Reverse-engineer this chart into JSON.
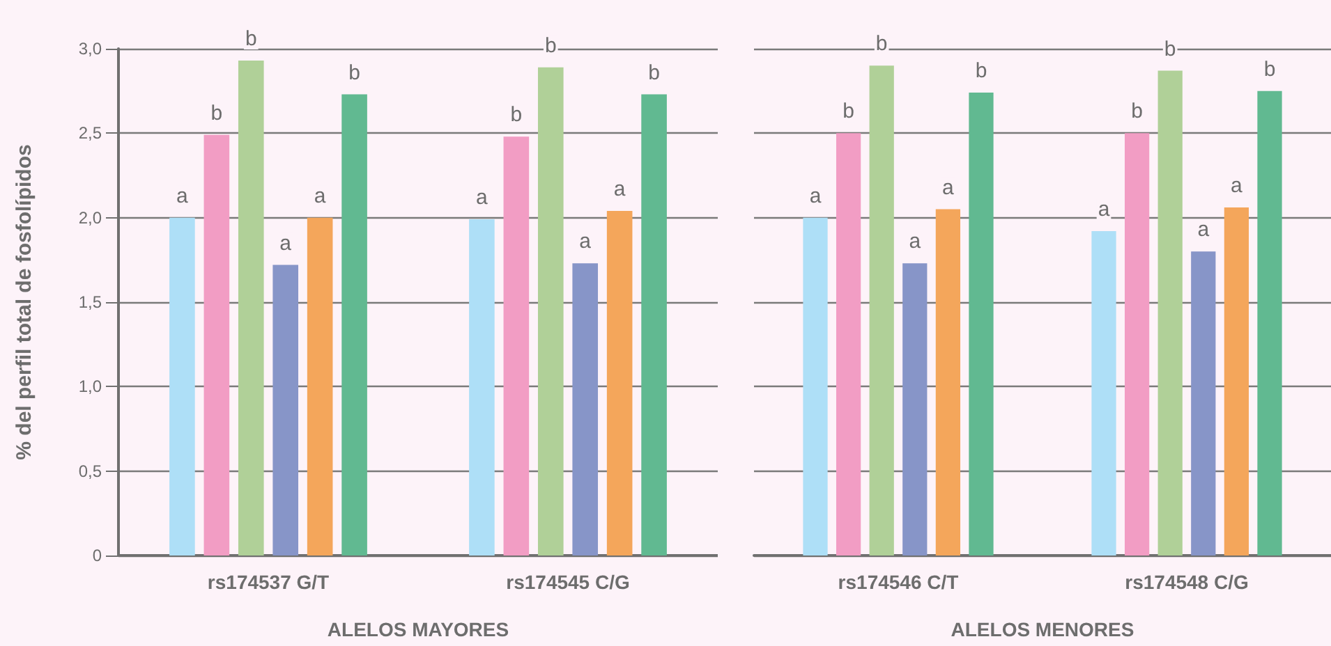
{
  "chart_data": [
    {
      "type": "bar",
      "xlabel": "ALELOS MAYORES",
      "ylabel": "% del perfil total de fosfolípidos",
      "categories": [
        "rs174537 G/T",
        "rs174545 C/G"
      ],
      "series": [
        {
          "color": "#aedff7",
          "values": [
            2.0,
            1.99
          ],
          "value_labels": [
            "a",
            "a"
          ]
        },
        {
          "color": "#f29dc4",
          "values": [
            2.49,
            2.48
          ],
          "value_labels": [
            "b",
            "b"
          ]
        },
        {
          "color": "#b0d098",
          "values": [
            2.93,
            2.89
          ],
          "value_labels": [
            "b",
            "b"
          ]
        },
        {
          "color": "#8795c8",
          "values": [
            1.72,
            1.73
          ],
          "value_labels": [
            "a",
            "a"
          ]
        },
        {
          "color": "#f4a65b",
          "values": [
            2.0,
            2.04
          ],
          "value_labels": [
            "a",
            "a"
          ]
        },
        {
          "color": "#61b991",
          "values": [
            2.73,
            2.73
          ],
          "value_labels": [
            "b",
            "b"
          ]
        }
      ],
      "ylim": [
        0,
        3
      ],
      "yticks": [
        0,
        {
          "value": 0.5,
          "label": "0,5"
        },
        {
          "value": 1,
          "label": "1,0"
        },
        {
          "value": 1.5,
          "label": "1,5"
        },
        {
          "value": 2,
          "label": "2,0"
        },
        {
          "value": 2.5,
          "label": "2,5"
        },
        {
          "value": 3,
          "label": "3,0"
        }
      ],
      "grid": "y"
    },
    {
      "type": "bar",
      "xlabel": "ALELOS MENORES",
      "categories": [
        "rs174546 C/T",
        "rs174548 C/G"
      ],
      "series": [
        {
          "color": "#aedff7",
          "values": [
            2.0,
            1.92
          ],
          "value_labels": [
            "a",
            "a"
          ]
        },
        {
          "color": "#f29dc4",
          "values": [
            2.5,
            2.5
          ],
          "value_labels": [
            "b",
            "b"
          ]
        },
        {
          "color": "#b0d098",
          "values": [
            2.9,
            2.87
          ],
          "value_labels": [
            "b",
            "b"
          ]
        },
        {
          "color": "#8795c8",
          "values": [
            1.73,
            1.8
          ],
          "value_labels": [
            "a",
            "a"
          ]
        },
        {
          "color": "#f4a65b",
          "values": [
            2.05,
            2.06
          ],
          "value_labels": [
            "a",
            "a"
          ]
        },
        {
          "color": "#61b991",
          "values": [
            2.74,
            2.75
          ],
          "value_labels": [
            "b",
            "b"
          ]
        }
      ],
      "ylim": [
        0,
        3
      ],
      "yticks": [
        0,
        0.5,
        1,
        1.5,
        2,
        2.5,
        3
      ],
      "grid": "y",
      "tick_labels": "x"
    }
  ]
}
